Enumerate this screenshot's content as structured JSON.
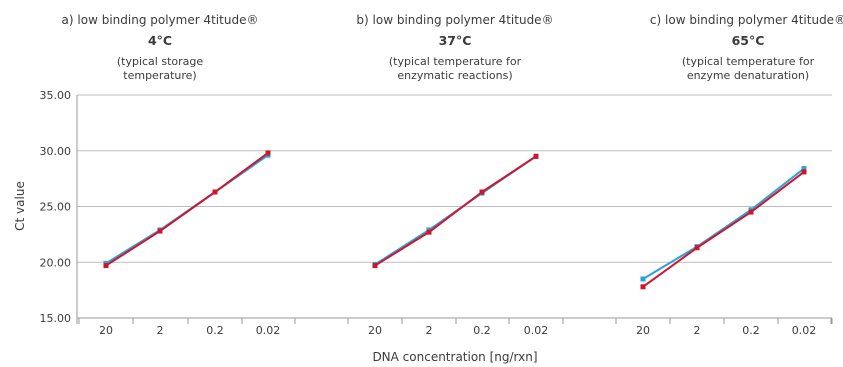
{
  "chart_data": {
    "type": "line",
    "ylabel": "Ct value",
    "xlabel": "DNA concentration [ng/rxn]",
    "y_ticks": [
      "35.00",
      "30.00",
      "25.00",
      "20.00",
      "15.00"
    ],
    "ylim": [
      15,
      35
    ],
    "grid": true,
    "series_colors": [
      "#29a3d9",
      "#d0142c"
    ],
    "panels": [
      {
        "title": "a) low binding polymer 4titude®",
        "temperature": "4°C",
        "subtitle_lines": [
          "(typical storage",
          "temperature)"
        ],
        "categories": [
          "20",
          "2",
          "0.2",
          "0.02"
        ],
        "series": [
          {
            "values": [
              19.9,
              22.9,
              26.3,
              29.6
            ]
          },
          {
            "values": [
              19.7,
              22.8,
              26.3,
              29.8
            ]
          }
        ]
      },
      {
        "title": "b) low binding polymer 4titude®",
        "temperature": "37°C",
        "subtitle_lines": [
          "(typical temperature for",
          "enzymatic reactions)"
        ],
        "categories": [
          "20",
          "2",
          "0.2",
          "0.02"
        ],
        "series": [
          {
            "values": [
              19.8,
              22.9,
              26.2,
              29.5
            ]
          },
          {
            "values": [
              19.7,
              22.7,
              26.3,
              29.5
            ]
          }
        ]
      },
      {
        "title": "c) low binding polymer 4titude®",
        "temperature": "65°C",
        "subtitle_lines": [
          "(typical temperature for",
          "enzyme denaturation)"
        ],
        "categories": [
          "20",
          "2",
          "0.2",
          "0.02"
        ],
        "series": [
          {
            "values": [
              18.5,
              21.4,
              24.7,
              28.4
            ]
          },
          {
            "values": [
              17.8,
              21.3,
              24.5,
              28.1
            ]
          }
        ]
      }
    ]
  }
}
